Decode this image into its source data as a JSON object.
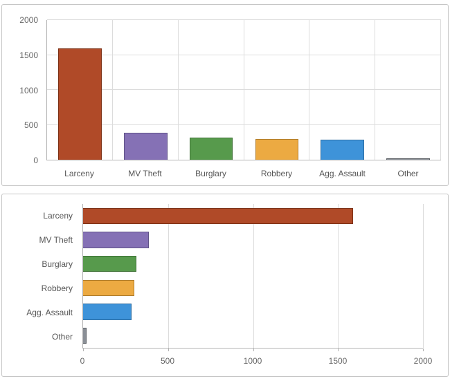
{
  "chart_data": [
    {
      "type": "bar",
      "orientation": "vertical",
      "title": "",
      "xlabel": "",
      "ylabel": "",
      "categories": [
        "Larceny",
        "MV Theft",
        "Burglary",
        "Robbery",
        "Agg. Assault",
        "Other"
      ],
      "values": [
        1590,
        385,
        315,
        300,
        285,
        20
      ],
      "ylim": [
        0,
        2000
      ],
      "yticks": [
        0,
        500,
        1000,
        1500,
        2000
      ],
      "grid": true,
      "legend": false,
      "colors": [
        "#b04a28",
        "#8571b5",
        "#579a4c",
        "#ecaa42",
        "#3e93d9",
        "#8a8f96"
      ],
      "border_colors": [
        "#7c3116",
        "#5e5186",
        "#3c6f33",
        "#b07c2a",
        "#2a699e",
        "#565a60"
      ]
    },
    {
      "type": "bar",
      "orientation": "horizontal",
      "title": "",
      "xlabel": "",
      "ylabel": "",
      "categories": [
        "Larceny",
        "MV Theft",
        "Burglary",
        "Robbery",
        "Agg. Assault",
        "Other"
      ],
      "values": [
        1590,
        385,
        315,
        300,
        285,
        20
      ],
      "xlim": [
        0,
        2000
      ],
      "xticks": [
        0,
        500,
        1000,
        1500,
        2000
      ],
      "grid": true,
      "legend": false,
      "colors": [
        "#b04a28",
        "#8571b5",
        "#579a4c",
        "#ecaa42",
        "#3e93d9",
        "#8a8f96"
      ],
      "border_colors": [
        "#7c3116",
        "#5e5186",
        "#3c6f33",
        "#b07c2a",
        "#2a699e",
        "#565a60"
      ]
    }
  ],
  "colors": {
    "grid": "#dcdcdc",
    "axis": "#b3b3b3",
    "tick_text": "#666666",
    "category_text": "#555555",
    "panel_border": "#c6c6c6",
    "background": "#ffffff"
  }
}
